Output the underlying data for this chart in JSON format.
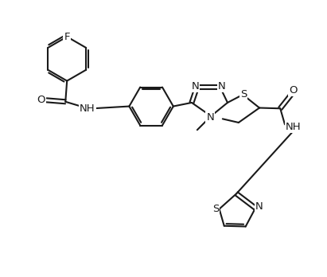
{
  "background_color": "#ffffff",
  "line_color": "#1a1a1a",
  "figsize": [
    4.11,
    3.48
  ],
  "dpi": 100,
  "bond_lw": 1.5,
  "font_size": 9.5,
  "xlim": [
    0,
    10.5
  ],
  "ylim": [
    0,
    9.0
  ]
}
